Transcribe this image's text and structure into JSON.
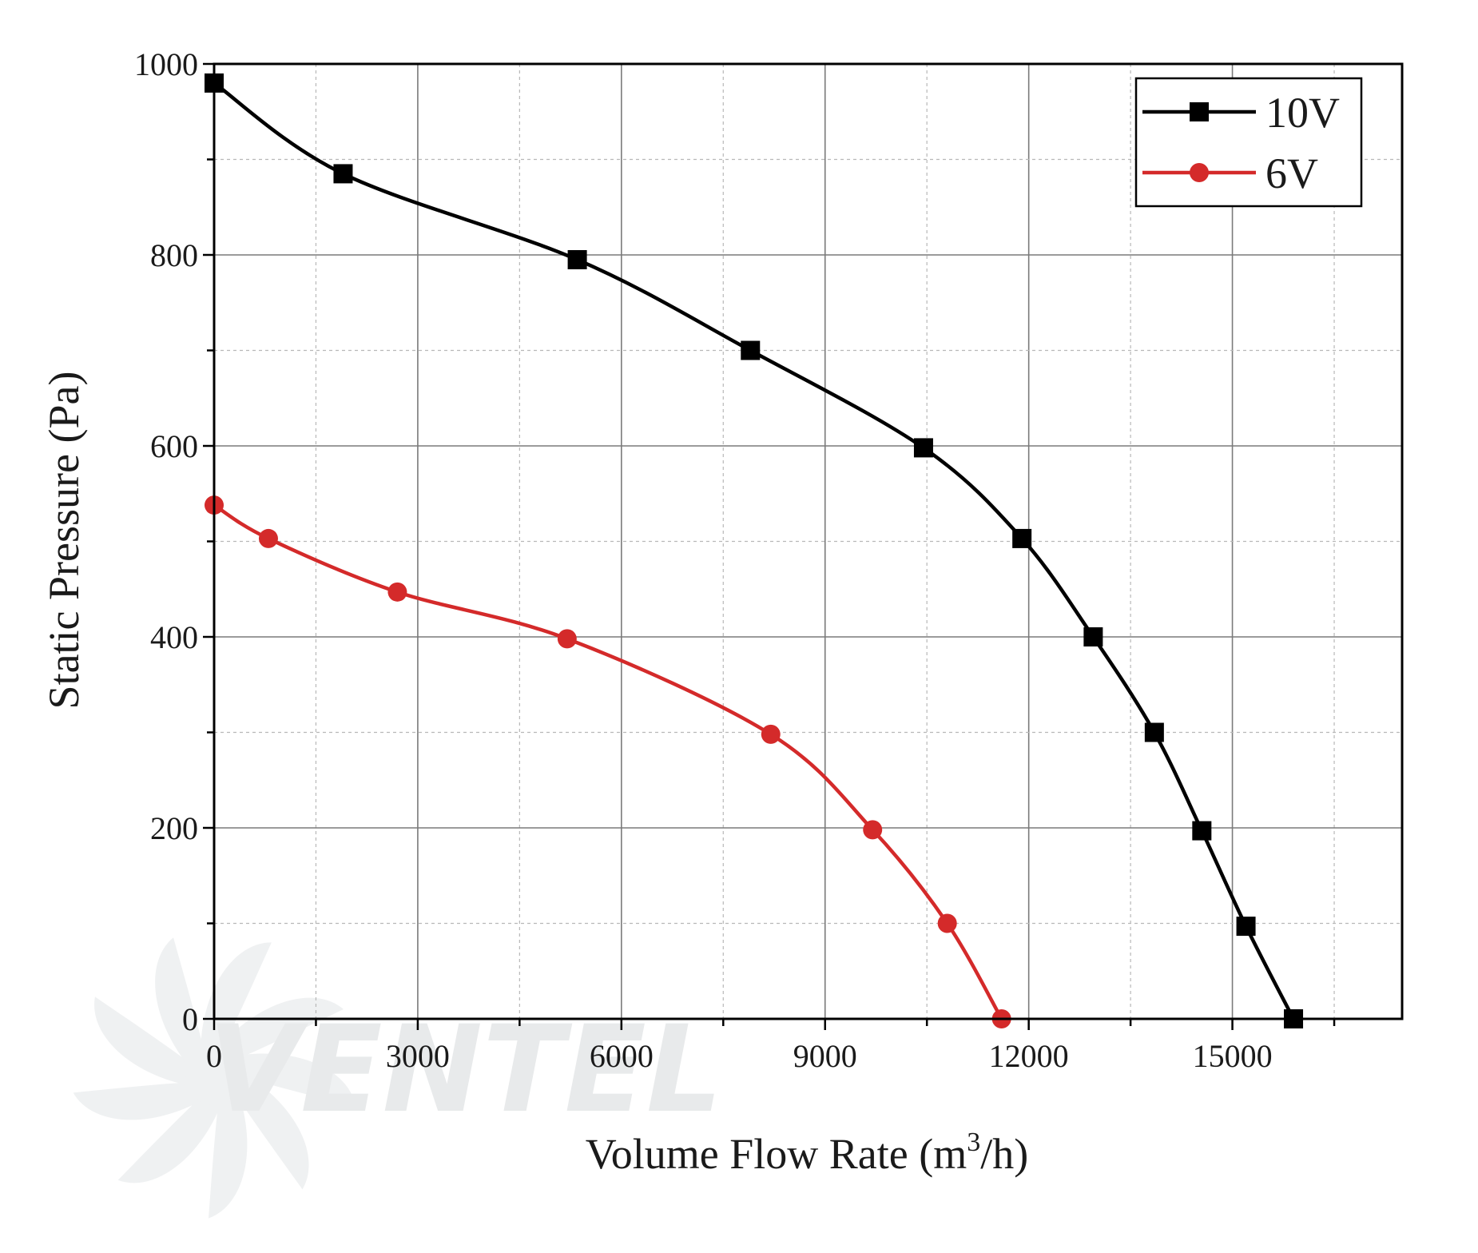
{
  "chart_data": {
    "type": "line",
    "xlabel_main": "Volume Flow Rate (m",
    "xlabel_sup": "3",
    "xlabel_tail": "/h)",
    "ylabel": "Static Pressure (Pa)",
    "xlim": [
      0,
      17500
    ],
    "ylim": [
      0,
      1000
    ],
    "xticks": [
      0,
      3000,
      6000,
      9000,
      12000,
      15000
    ],
    "yticks": [
      0,
      200,
      400,
      600,
      800,
      1000
    ],
    "grid": true,
    "legend_position": "top-right",
    "series": [
      {
        "name": "10V",
        "color": "#000000",
        "marker": "square",
        "points": [
          {
            "x": 0,
            "y": 980
          },
          {
            "x": 1900,
            "y": 885
          },
          {
            "x": 5350,
            "y": 795
          },
          {
            "x": 7900,
            "y": 700
          },
          {
            "x": 10450,
            "y": 598
          },
          {
            "x": 11900,
            "y": 503
          },
          {
            "x": 12950,
            "y": 400
          },
          {
            "x": 13850,
            "y": 300
          },
          {
            "x": 14550,
            "y": 197
          },
          {
            "x": 15200,
            "y": 97
          },
          {
            "x": 15900,
            "y": 0
          }
        ]
      },
      {
        "name": "6V",
        "color": "#d42a2a",
        "marker": "circle",
        "points": [
          {
            "x": 0,
            "y": 538
          },
          {
            "x": 800,
            "y": 503
          },
          {
            "x": 2700,
            "y": 447
          },
          {
            "x": 5200,
            "y": 398
          },
          {
            "x": 8200,
            "y": 298
          },
          {
            "x": 9700,
            "y": 198
          },
          {
            "x": 10800,
            "y": 100
          },
          {
            "x": 11600,
            "y": 0
          }
        ]
      }
    ]
  },
  "watermark": {
    "text": "VENTEL",
    "icon": "fan-icon"
  }
}
